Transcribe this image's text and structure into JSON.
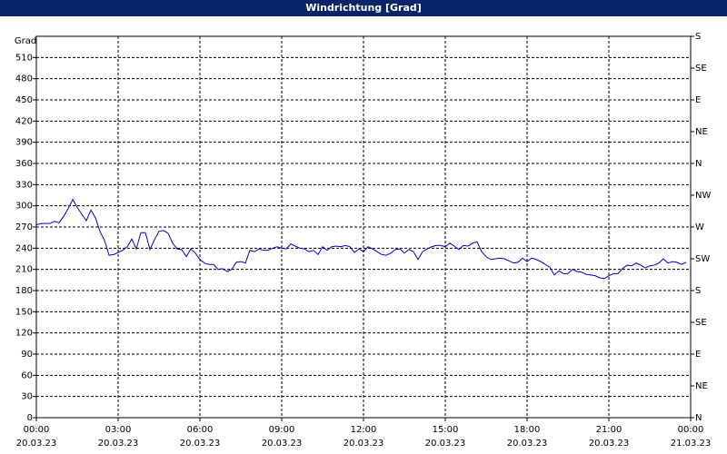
{
  "chart_data": {
    "type": "line",
    "title": "Windrichtung [Grad]",
    "y_label": "Grad",
    "x": [
      0,
      10,
      20,
      30,
      40,
      50,
      60,
      70,
      80,
      90,
      100,
      110,
      120,
      130,
      140,
      150,
      160,
      170,
      180,
      190,
      200,
      210,
      220,
      230,
      240,
      250,
      260,
      270,
      280,
      290,
      300,
      310,
      320,
      330,
      340,
      350,
      360,
      370,
      380,
      390,
      400,
      410,
      420,
      430,
      440,
      450,
      460,
      470,
      480,
      490,
      500,
      510,
      520,
      530,
      540,
      550,
      560,
      570,
      580,
      590,
      600,
      610,
      620,
      630,
      640,
      650,
      660,
      670,
      680,
      690,
      700,
      710,
      720,
      730,
      740,
      750,
      760,
      770,
      780,
      790,
      800,
      810,
      820,
      830,
      840,
      850,
      860,
      870,
      880,
      890,
      900,
      910,
      920,
      930,
      940,
      950,
      960,
      970,
      980,
      990,
      1000,
      1010,
      1020,
      1030,
      1040,
      1050,
      1060,
      1070,
      1080,
      1090,
      1100,
      1110,
      1120,
      1130,
      1140,
      1150,
      1160,
      1170,
      1180,
      1190,
      1200,
      1210,
      1220,
      1230,
      1240,
      1250,
      1260,
      1270,
      1280,
      1290,
      1300,
      1310,
      1320,
      1330,
      1340,
      1350,
      1360,
      1370,
      1380,
      1390,
      1400,
      1410,
      1420,
      1430
    ],
    "series": [
      {
        "color": "#0000cc",
        "values": [
          273,
          275,
          275,
          275,
          278,
          276,
          285,
          296,
          309,
          298,
          288,
          279,
          294,
          283,
          264,
          251,
          230,
          231,
          234,
          237,
          242,
          253,
          239,
          262,
          262,
          238,
          252,
          264,
          265,
          261,
          247,
          239,
          238,
          228,
          239,
          233,
          224,
          219,
          217,
          217,
          210,
          211,
          207,
          210,
          220,
          221,
          219,
          237,
          235,
          239,
          237,
          237,
          240,
          242,
          240,
          239,
          246,
          243,
          240,
          239,
          235,
          237,
          231,
          242,
          237,
          242,
          243,
          242,
          244,
          242,
          234,
          239,
          235,
          242,
          239,
          235,
          231,
          230,
          233,
          238,
          239,
          233,
          238,
          235,
          224,
          235,
          239,
          242,
          244,
          244,
          242,
          247,
          243,
          238,
          244,
          243,
          247,
          249,
          235,
          228,
          224,
          225,
          226,
          225,
          222,
          219,
          220,
          226,
          221,
          226,
          224,
          221,
          217,
          213,
          202,
          208,
          204,
          204,
          210,
          207,
          206,
          203,
          202,
          201,
          198,
          197,
          201,
          204,
          204,
          211,
          216,
          215,
          219,
          216,
          212,
          215,
          216,
          219,
          225,
          219,
          221,
          220,
          217,
          220
        ]
      }
    ],
    "xlim": [
      0,
      1440
    ],
    "xticks": [
      {
        "value": 0,
        "label": "00:00",
        "date": "20.03.23"
      },
      {
        "value": 180,
        "label": "03:00",
        "date": "20.03.23"
      },
      {
        "value": 360,
        "label": "06:00",
        "date": "20.03.23"
      },
      {
        "value": 540,
        "label": "09:00",
        "date": "20.03.23"
      },
      {
        "value": 720,
        "label": "12:00",
        "date": "20.03.23"
      },
      {
        "value": 900,
        "label": "15:00",
        "date": "20.03.23"
      },
      {
        "value": 1080,
        "label": "18:00",
        "date": "20.03.23"
      },
      {
        "value": 1260,
        "label": "21:00",
        "date": "20.03.23"
      },
      {
        "value": 1440,
        "label": "00:00",
        "date": "21.03.23"
      }
    ],
    "ylim": [
      0,
      540
    ],
    "yticks": [
      0,
      30,
      60,
      90,
      120,
      150,
      180,
      210,
      240,
      270,
      300,
      330,
      360,
      390,
      420,
      450,
      480,
      510
    ],
    "y2lim": [
      0,
      540
    ],
    "y2ticks": [
      {
        "value": 0,
        "label": "N"
      },
      {
        "value": 45,
        "label": "NE"
      },
      {
        "value": 90,
        "label": "E"
      },
      {
        "value": 135,
        "label": "SE"
      },
      {
        "value": 180,
        "label": "S"
      },
      {
        "value": 225,
        "label": "SW"
      },
      {
        "value": 270,
        "label": "W"
      },
      {
        "value": 315,
        "label": "NW"
      },
      {
        "value": 360,
        "label": "N"
      },
      {
        "value": 405,
        "label": "NE"
      },
      {
        "value": 450,
        "label": "E"
      },
      {
        "value": 495,
        "label": "SE"
      },
      {
        "value": 540,
        "label": "S"
      }
    ],
    "grid": true
  }
}
